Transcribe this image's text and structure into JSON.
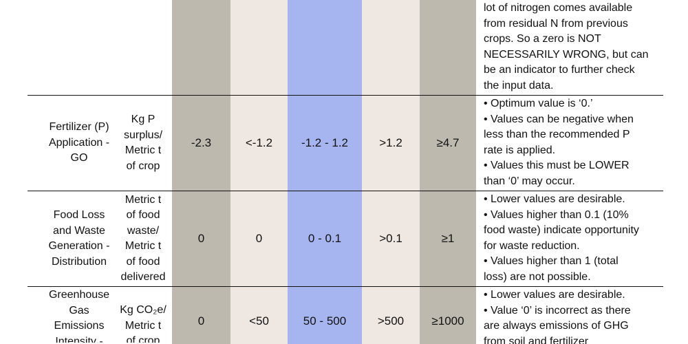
{
  "colors": {
    "col_gray": "#bdb9af",
    "col_beige": "#efe7e1",
    "col_blue": "#a6b5f0",
    "rule": "#111111"
  },
  "top_notes": [
    "lot of nitrogen comes available",
    "from residual N from previous",
    "crops. So a zero is NOT",
    "NECESSARILY WRONG, but can",
    "be an indicator to further check",
    "the input data."
  ],
  "rows": [
    {
      "indicator": [
        "Fertilizer (P)",
        "Application -",
        "GO"
      ],
      "unit": [
        "Kg P",
        "surplus/",
        "Metric t",
        "of crop"
      ],
      "values": [
        "-2.3",
        "<-1.2",
        "-1.2 - 1.2",
        ">1.2",
        "≥4.7"
      ],
      "notes": [
        "• Optimum value is ‘0.’",
        "• Values can be negative when",
        "less than the recommended P",
        "rate is applied.",
        "• Values this must be LOWER",
        " than ‘0’ may occur."
      ]
    },
    {
      "indicator": [
        "Food Loss",
        "and Waste",
        "Generation -",
        "Distribution"
      ],
      "unit": [
        "Metric t",
        "of food",
        "waste/",
        "Metric t",
        "of food",
        "delivered"
      ],
      "values": [
        "0",
        "0",
        "0 - 0.1",
        ">0.1",
        "≥1"
      ],
      "notes": [
        "• Lower values are desirable.",
        "• Values higher than 0.1 (10%",
        "food waste) indicate opportunity",
        "for waste reduction.",
        "• Values higher than 1 (total",
        "loss) are not possible."
      ]
    },
    {
      "indicator": [
        "Greenhouse",
        "Gas",
        "Emissions",
        "Intensity -"
      ],
      "unit": [
        "Kg CO₂e/",
        "Metric t",
        "of crop"
      ],
      "values": [
        "0",
        "<50",
        "50 - 500",
        ">500",
        "≥1000"
      ],
      "notes": [
        "• Lower values are desirable.",
        "• Value ‘0’ is incorrect as there",
        "are always emissions of GHG",
        "from soil and fertilizer"
      ]
    }
  ]
}
